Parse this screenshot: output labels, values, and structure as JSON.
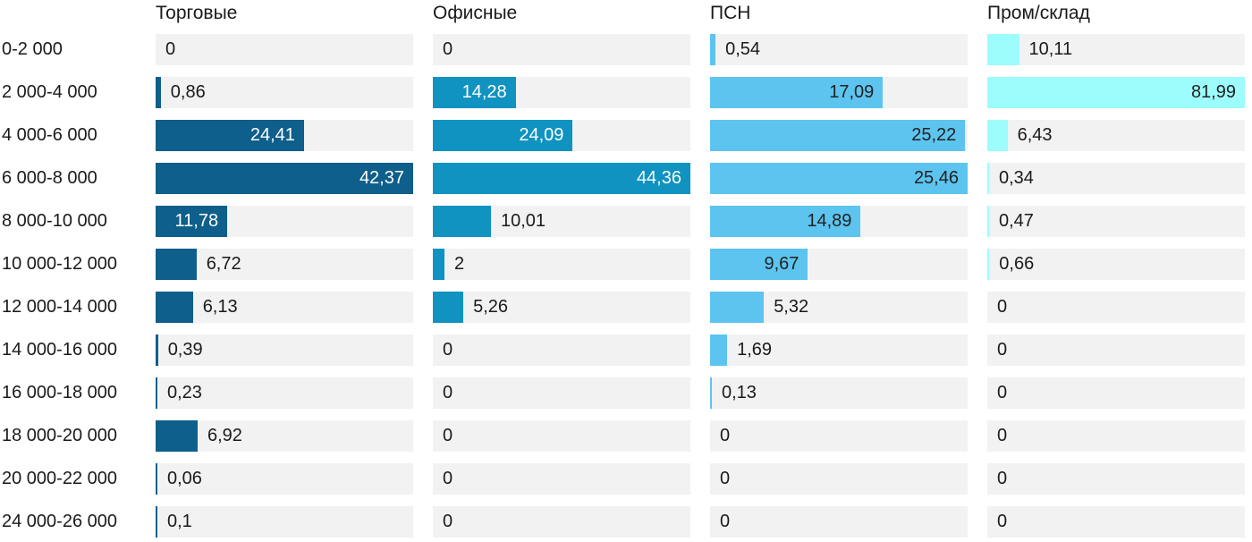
{
  "chart_data": {
    "type": "bar",
    "orientation": "horizontal",
    "title": "",
    "xlabel": "",
    "ylabel": "",
    "grid": false,
    "legend_position": "column-headers-top",
    "scaling": "each series column scaled so its own max value fills the 288px track",
    "track_color": "#f2f2f2",
    "text_color": "#1a1a1a",
    "decimal_separator": ",",
    "categories": [
      "0-2 000",
      "2 000-4 000",
      "4 000-6 000",
      "6 000-8 000",
      "8 000-10 000",
      "10 000-12 000",
      "12 000-14 000",
      "14 000-16 000",
      "16 000-18 000",
      "18 000-20 000",
      "20 000-22 000",
      "24 000-26 000"
    ],
    "series": [
      {
        "name": "Торговые",
        "color": "#0e5f8b",
        "label_color_inside": "#ffffff",
        "values": [
          0,
          0.86,
          24.41,
          42.37,
          11.78,
          6.72,
          6.13,
          0.39,
          0.23,
          6.92,
          0.06,
          0.1
        ],
        "labels": [
          "0",
          "0,86",
          "24,41",
          "42,37",
          "11,78",
          "6,72",
          "6,13",
          "0,39",
          "0,23",
          "6,92",
          "0,06",
          "0,1"
        ]
      },
      {
        "name": "Офисные",
        "color": "#1093c1",
        "label_color_inside": "#ffffff",
        "values": [
          0,
          14.28,
          24.09,
          44.36,
          10.01,
          2,
          5.26,
          0,
          0,
          0,
          0,
          0
        ],
        "labels": [
          "0",
          "14,28",
          "24,09",
          "44,36",
          "10,01",
          "2",
          "5,26",
          "0",
          "0",
          "0",
          "0",
          "0"
        ]
      },
      {
        "name": "ПСН",
        "color": "#5cc4ef",
        "label_color_inside": "#222222",
        "values": [
          0.54,
          17.09,
          25.22,
          25.46,
          14.89,
          9.67,
          5.32,
          1.69,
          0.13,
          0,
          0,
          0
        ],
        "labels": [
          "0,54",
          "17,09",
          "25,22",
          "25,46",
          "14,89",
          "9,67",
          "5,32",
          "1,69",
          "0,13",
          "0",
          "0",
          "0"
        ]
      },
      {
        "name": "Пром/склад",
        "color": "#9cfdfc",
        "label_color_inside": "#222222",
        "values": [
          10.11,
          81.99,
          6.43,
          0.34,
          0.47,
          0.66,
          0,
          0,
          0,
          0,
          0,
          0
        ],
        "labels": [
          "10,11",
          "81,99",
          "6,43",
          "0,34",
          "0,47",
          "0,66",
          "0",
          "0",
          "0",
          "0",
          "0",
          "0"
        ]
      }
    ]
  }
}
